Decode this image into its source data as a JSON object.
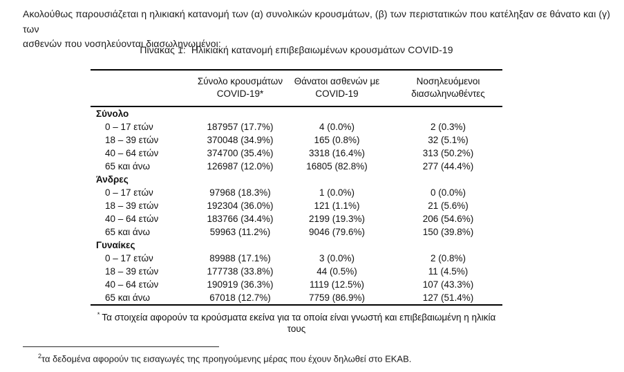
{
  "intro": {
    "line1": "Ακολούθως παρουσιάζεται η ηλικιακή κατανομή των (α) συνολικών κρουσμάτων, (β) των περιστατικών που κατέληξαν σε θάνατο και (γ) των",
    "line2": "ασθενών που νοσηλεύονται διασωληνωμένοι:"
  },
  "table": {
    "title_label": "Πίνακας 1:",
    "title_text": "Ηλικιακή κατανομή επιβεβαιωμένων κρουσμάτων COVID-19",
    "columns": {
      "cases": "Σύνολο κρουσμάτων\nCOVID-19*",
      "deaths": "Θάνατοι ασθενών με\nCOVID-19",
      "intubated": "Νοσηλευόμενοι\nδιασωληνωθέντες"
    },
    "sections": [
      {
        "label": "Σύνολο",
        "rows": [
          {
            "age": "0 – 17 ετών",
            "cases": "187957 (17.7%)",
            "deaths": "4 (0.0%)",
            "intubated": "2 (0.3%)"
          },
          {
            "age": "18 – 39 ετών",
            "cases": "370048 (34.9%)",
            "deaths": "165 (0.8%)",
            "intubated": "32 (5.1%)"
          },
          {
            "age": "40 – 64 ετών",
            "cases": "374700 (35.4%)",
            "deaths": "3318 (16.4%)",
            "intubated": "313 (50.2%)"
          },
          {
            "age": "65 και άνω",
            "cases": "126987 (12.0%)",
            "deaths": "16805 (82.8%)",
            "intubated": "277 (44.4%)"
          }
        ]
      },
      {
        "label": "Άνδρες",
        "rows": [
          {
            "age": "0 – 17 ετών",
            "cases": "97968 (18.3%)",
            "deaths": "1 (0.0%)",
            "intubated": "0 (0.0%)"
          },
          {
            "age": "18 – 39 ετών",
            "cases": "192304 (36.0%)",
            "deaths": "121 (1.1%)",
            "intubated": "21 (5.6%)"
          },
          {
            "age": "40 – 64 ετών",
            "cases": "183766 (34.4%)",
            "deaths": "2199 (19.3%)",
            "intubated": "206 (54.6%)"
          },
          {
            "age": "65 και άνω",
            "cases": "59963 (11.2%)",
            "deaths": "9046 (79.6%)",
            "intubated": "150 (39.8%)"
          }
        ]
      },
      {
        "label": "Γυναίκες",
        "rows": [
          {
            "age": "0 – 17 ετών",
            "cases": "89988 (17.1%)",
            "deaths": "3 (0.0%)",
            "intubated": "2 (0.8%)"
          },
          {
            "age": "18 – 39 ετών",
            "cases": "177738 (33.8%)",
            "deaths": "44 (0.5%)",
            "intubated": "11 (4.5%)"
          },
          {
            "age": "40 – 64 ετών",
            "cases": "190919 (36.3%)",
            "deaths": "1119 (12.5%)",
            "intubated": "107 (43.3%)"
          },
          {
            "age": "65 και άνω",
            "cases": "67018 (12.7%)",
            "deaths": "7759 (86.9%)",
            "intubated": "127 (51.4%)"
          }
        ]
      }
    ],
    "footnote_marker": "*",
    "footnote": "Τα στοιχεία αφορούν τα κρούσματα εκείνα για τα οποία είναι γνωστή και επιβεβαιωμένη η ηλικία τους"
  },
  "page_footnote": {
    "marker": "2",
    "text": "τα δεδομένα αφορούν τις εισαγωγές της προηγούμενης μέρας που έχουν δηλωθεί στο ΕΚΑΒ."
  }
}
